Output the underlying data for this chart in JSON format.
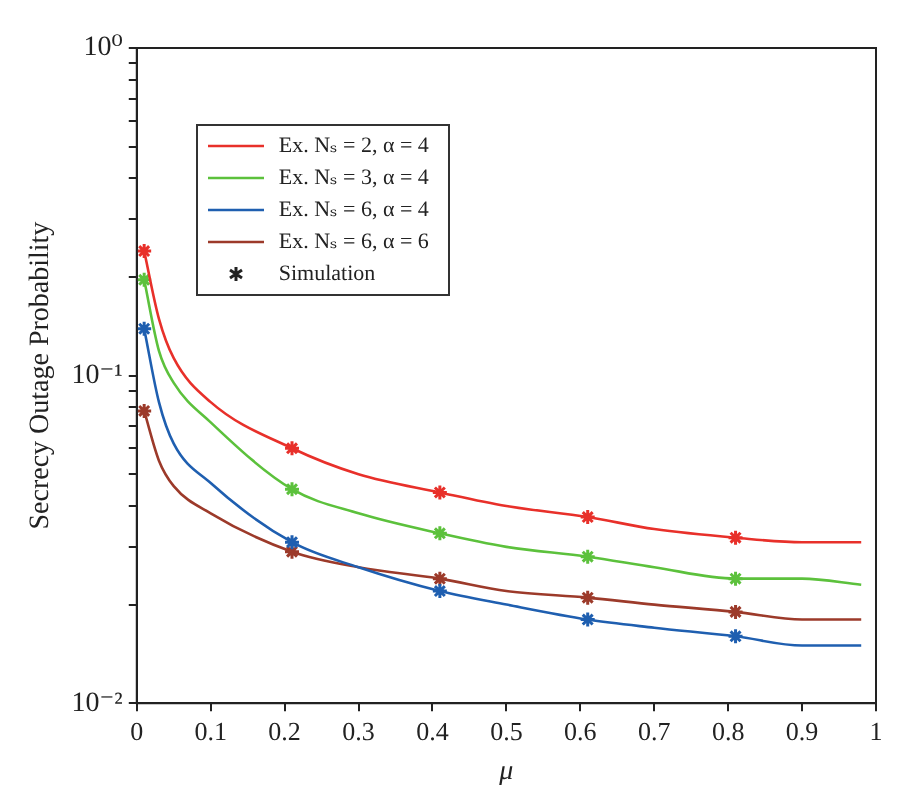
{
  "chart_data": {
    "type": "line",
    "xlabel": "μ",
    "ylabel": "Secrecy Outage Probability",
    "log": "y",
    "xlim": [
      0,
      1
    ],
    "ylim": [
      0.01,
      1
    ],
    "xticks": [
      0,
      0.1,
      0.2,
      0.3,
      0.4,
      0.5,
      0.6,
      0.7,
      0.8,
      0.9,
      1
    ],
    "yticks": [
      {
        "value": 0.01,
        "label": "10⁻²"
      },
      {
        "value": 0.02,
        "label": null
      },
      {
        "value": 0.03,
        "label": null
      },
      {
        "value": 0.04,
        "label": null
      },
      {
        "value": 0.05,
        "label": null
      },
      {
        "value": 0.06,
        "label": null
      },
      {
        "value": 0.07,
        "label": null
      },
      {
        "value": 0.08,
        "label": null
      },
      {
        "value": 0.09,
        "label": null
      },
      {
        "value": 0.1,
        "label": "10⁻¹"
      },
      {
        "value": 0.2,
        "label": null
      },
      {
        "value": 0.3,
        "label": null
      },
      {
        "value": 0.4,
        "label": null
      },
      {
        "value": 0.5,
        "label": null
      },
      {
        "value": 0.6,
        "label": null
      },
      {
        "value": 0.7,
        "label": null
      },
      {
        "value": 0.8,
        "label": null
      },
      {
        "value": 0.9,
        "label": null
      },
      {
        "value": 1,
        "label": "10⁰"
      }
    ],
    "grid": false,
    "legend": "top left",
    "marker": "none",
    "line_style": "solid",
    "x": [
      0.01,
      0.03,
      0.05,
      0.1,
      0.21,
      0.3,
      0.41,
      0.5,
      0.61,
      0.7,
      0.81,
      0.9,
      0.98
    ],
    "series": [
      {
        "name": "Ex. Nₛ = 2, α = 4",
        "color": "#e8302a",
        "values": [
          0.24,
          0.149,
          0.113,
          0.083,
          0.06,
          0.05,
          0.044,
          0.04,
          0.037,
          0.034,
          0.032,
          0.031,
          0.031
        ]
      },
      {
        "name": "Ex. Nₛ = 3, α = 4",
        "color": "#5cc13c",
        "values": [
          0.196,
          0.119,
          0.095,
          0.072,
          0.045,
          0.038,
          0.033,
          0.03,
          0.028,
          0.026,
          0.024,
          0.024,
          0.023
        ]
      },
      {
        "name": "Ex. Nₛ = 6, α = 4",
        "color": "#1f5fb0",
        "values": [
          0.139,
          0.083,
          0.062,
          0.047,
          0.031,
          0.026,
          0.022,
          0.02,
          0.018,
          0.017,
          0.016,
          0.015,
          0.015
        ]
      },
      {
        "name": "Ex. Nₛ = 6, α = 6",
        "color": "#9c3a2a",
        "values": [
          0.078,
          0.055,
          0.046,
          0.038,
          0.029,
          0.026,
          0.024,
          0.022,
          0.021,
          0.02,
          0.019,
          0.018,
          0.018
        ]
      },
      {
        "type": "scatter",
        "marker": "cross",
        "color": "#e8302a",
        "x": [
          0.01,
          0.21,
          0.41,
          0.61,
          0.81
        ],
        "values": [
          0.24,
          0.06,
          0.044,
          0.037,
          0.032
        ]
      },
      {
        "type": "scatter",
        "marker": "cross",
        "color": "#5cc13c",
        "x": [
          0.01,
          0.21,
          0.41,
          0.61,
          0.81
        ],
        "values": [
          0.196,
          0.045,
          0.033,
          0.028,
          0.024
        ]
      },
      {
        "type": "scatter",
        "marker": "cross",
        "color": "#1f5fb0",
        "x": [
          0.01,
          0.21,
          0.41,
          0.61,
          0.81
        ],
        "values": [
          0.139,
          0.031,
          0.022,
          0.018,
          0.016
        ]
      },
      {
        "type": "scatter",
        "marker": "cross",
        "color": "#9c3a2a",
        "x": [
          0.01,
          0.21,
          0.41,
          0.61,
          0.81
        ],
        "values": [
          0.078,
          0.029,
          0.024,
          0.021,
          0.019
        ]
      }
    ],
    "annotations": [
      "Simulation"
    ]
  }
}
